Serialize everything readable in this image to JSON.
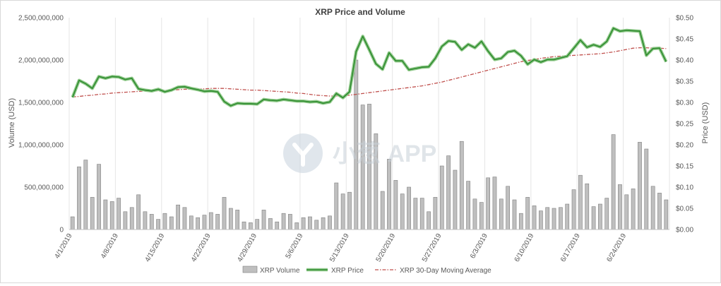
{
  "chart_data": {
    "type": "bar+line",
    "title": "XRP Price and Volume",
    "ylabel_left": "Volume (USD)",
    "ylabel_right": "Price (USD)",
    "yleft_ticks": [
      "0",
      "500,000,000",
      "1,000,000,000",
      "1,500,000,000",
      "2,000,000,000",
      "2,500,000,000"
    ],
    "yright_ticks": [
      "$0.00",
      "$0.05",
      "$0.10",
      "$0.15",
      "$0.20",
      "$0.25",
      "$0.30",
      "$0.35",
      "$0.40",
      "$0.45",
      "$0.50"
    ],
    "ylim_left": [
      0,
      2500000000
    ],
    "ylim_right": [
      0,
      0.5
    ],
    "x_tick_labels": [
      {
        "index": 0,
        "label": "4/1/2019"
      },
      {
        "index": 7,
        "label": "4/8/2019"
      },
      {
        "index": 14,
        "label": "4/15/2019"
      },
      {
        "index": 21,
        "label": "4/22/2019"
      },
      {
        "index": 28,
        "label": "4/29/2019"
      },
      {
        "index": 35,
        "label": "5/6/2019"
      },
      {
        "index": 42,
        "label": "5/13/2019"
      },
      {
        "index": 49,
        "label": "5/20/2019"
      },
      {
        "index": 56,
        "label": "5/27/2019"
      },
      {
        "index": 63,
        "label": "6/3/2019"
      },
      {
        "index": 70,
        "label": "6/10/2019"
      },
      {
        "index": 77,
        "label": "6/17/2019"
      },
      {
        "index": 84,
        "label": "6/24/2019"
      }
    ],
    "series": [
      {
        "name": "XRP Volume",
        "type": "bar",
        "axis": "left",
        "color": "#bfbfbf",
        "values": [
          150000000,
          740000000,
          820000000,
          380000000,
          770000000,
          350000000,
          330000000,
          370000000,
          210000000,
          260000000,
          410000000,
          210000000,
          180000000,
          120000000,
          190000000,
          150000000,
          290000000,
          260000000,
          160000000,
          140000000,
          170000000,
          200000000,
          180000000,
          380000000,
          250000000,
          230000000,
          90000000,
          80000000,
          120000000,
          230000000,
          130000000,
          90000000,
          190000000,
          180000000,
          80000000,
          140000000,
          150000000,
          110000000,
          140000000,
          160000000,
          550000000,
          420000000,
          440000000,
          2000000000,
          1470000000,
          1480000000,
          1130000000,
          450000000,
          830000000,
          580000000,
          420000000,
          500000000,
          370000000,
          370000000,
          210000000,
          380000000,
          750000000,
          870000000,
          700000000,
          1040000000,
          570000000,
          360000000,
          320000000,
          610000000,
          620000000,
          360000000,
          510000000,
          350000000,
          190000000,
          380000000,
          280000000,
          220000000,
          260000000,
          250000000,
          260000000,
          300000000,
          470000000,
          640000000,
          540000000,
          270000000,
          300000000,
          370000000,
          1120000000,
          530000000,
          410000000,
          480000000,
          1030000000,
          950000000,
          510000000,
          430000000,
          350000000
        ]
      },
      {
        "name": "XRP Price",
        "type": "line",
        "axis": "right",
        "color": "#2e8b2e",
        "values": [
          0.312,
          0.352,
          0.344,
          0.333,
          0.361,
          0.357,
          0.361,
          0.36,
          0.354,
          0.357,
          0.332,
          0.329,
          0.327,
          0.331,
          0.325,
          0.329,
          0.336,
          0.337,
          0.333,
          0.33,
          0.326,
          0.327,
          0.325,
          0.302,
          0.292,
          0.298,
          0.297,
          0.297,
          0.296,
          0.307,
          0.305,
          0.304,
          0.307,
          0.305,
          0.303,
          0.303,
          0.301,
          0.302,
          0.298,
          0.301,
          0.321,
          0.311,
          0.325,
          0.42,
          0.456,
          0.424,
          0.391,
          0.378,
          0.417,
          0.398,
          0.398,
          0.377,
          0.38,
          0.383,
          0.384,
          0.404,
          0.432,
          0.445,
          0.443,
          0.424,
          0.437,
          0.429,
          0.444,
          0.421,
          0.401,
          0.404,
          0.419,
          0.422,
          0.41,
          0.39,
          0.401,
          0.395,
          0.401,
          0.401,
          0.405,
          0.409,
          0.428,
          0.447,
          0.43,
          0.436,
          0.431,
          0.444,
          0.475,
          0.468,
          0.47,
          0.469,
          0.468,
          0.411,
          0.427,
          0.428,
          0.396
        ]
      },
      {
        "name": "XRP 30-Day Moving Average",
        "type": "line",
        "axis": "right",
        "color": "#c0504d",
        "values": [
          0.313,
          0.314,
          0.316,
          0.317,
          0.319,
          0.32,
          0.322,
          0.323,
          0.324,
          0.325,
          0.326,
          0.327,
          0.327,
          0.327,
          0.328,
          0.329,
          0.33,
          0.331,
          0.331,
          0.331,
          0.332,
          0.333,
          0.333,
          0.333,
          0.332,
          0.331,
          0.33,
          0.329,
          0.329,
          0.328,
          0.327,
          0.326,
          0.325,
          0.324,
          0.322,
          0.321,
          0.319,
          0.317,
          0.316,
          0.315,
          0.315,
          0.316,
          0.317,
          0.319,
          0.321,
          0.323,
          0.325,
          0.327,
          0.329,
          0.331,
          0.333,
          0.335,
          0.337,
          0.339,
          0.342,
          0.345,
          0.348,
          0.352,
          0.356,
          0.36,
          0.364,
          0.368,
          0.372,
          0.376,
          0.38,
          0.384,
          0.388,
          0.392,
          0.396,
          0.399,
          0.401,
          0.404,
          0.406,
          0.408,
          0.409,
          0.41,
          0.411,
          0.412,
          0.413,
          0.414,
          0.415,
          0.417,
          0.419,
          0.422,
          0.425,
          0.428,
          0.429,
          0.429,
          0.428,
          0.428,
          0.427
        ]
      }
    ],
    "legend_position": "bottom",
    "grid": "vertical"
  },
  "watermark": {
    "text": "小葱 APP"
  }
}
